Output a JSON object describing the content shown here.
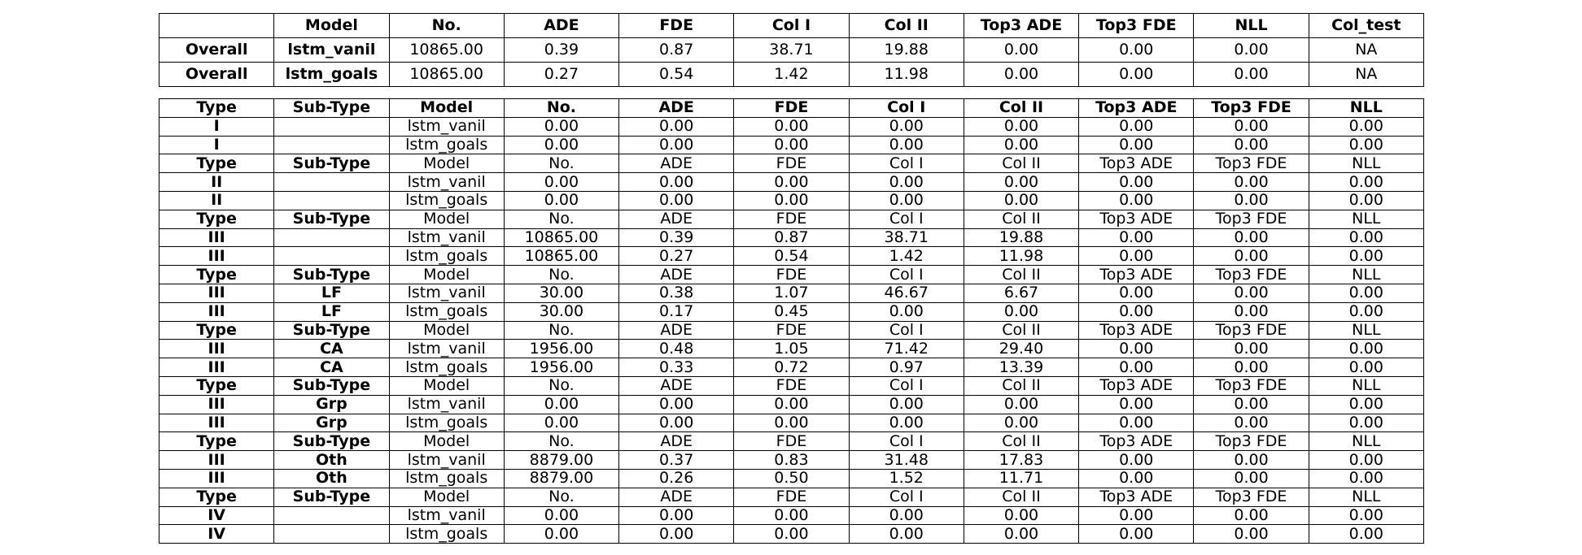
{
  "chart_data": [
    {
      "type": "table",
      "columns": [
        "",
        "Model",
        "No.",
        "ADE",
        "FDE",
        "Col I",
        "Col II",
        "Top3 ADE",
        "Top3 FDE",
        "NLL",
        "Col_test"
      ],
      "rows": [
        [
          "Overall",
          "lstm_vanil",
          "10865.00",
          "0.39",
          "0.87",
          "38.71",
          "19.88",
          "0.00",
          "0.00",
          "0.00",
          "NA"
        ],
        [
          "Overall",
          "lstm_goals",
          "10865.00",
          "0.27",
          "0.54",
          "1.42",
          "11.98",
          "0.00",
          "0.00",
          "0.00",
          "NA"
        ]
      ]
    },
    {
      "type": "table",
      "columns": [
        "Type",
        "Sub-Type",
        "Model",
        "No.",
        "ADE",
        "FDE",
        "Col I",
        "Col II",
        "Top3 ADE",
        "Top3 FDE",
        "NLL"
      ],
      "rows": [
        [
          "I",
          "",
          "lstm_vanil",
          "0.00",
          "0.00",
          "0.00",
          "0.00",
          "0.00",
          "0.00",
          "0.00",
          "0.00"
        ],
        [
          "I",
          "",
          "lstm_goals",
          "0.00",
          "0.00",
          "0.00",
          "0.00",
          "0.00",
          "0.00",
          "0.00",
          "0.00"
        ],
        [
          "Type",
          "Sub-Type",
          "Model",
          "No.",
          "ADE",
          "FDE",
          "Col I",
          "Col II",
          "Top3 ADE",
          "Top3 FDE",
          "NLL"
        ],
        [
          "II",
          "",
          "lstm_vanil",
          "0.00",
          "0.00",
          "0.00",
          "0.00",
          "0.00",
          "0.00",
          "0.00",
          "0.00"
        ],
        [
          "II",
          "",
          "lstm_goals",
          "0.00",
          "0.00",
          "0.00",
          "0.00",
          "0.00",
          "0.00",
          "0.00",
          "0.00"
        ],
        [
          "Type",
          "Sub-Type",
          "Model",
          "No.",
          "ADE",
          "FDE",
          "Col I",
          "Col II",
          "Top3 ADE",
          "Top3 FDE",
          "NLL"
        ],
        [
          "III",
          "",
          "lstm_vanil",
          "10865.00",
          "0.39",
          "0.87",
          "38.71",
          "19.88",
          "0.00",
          "0.00",
          "0.00"
        ],
        [
          "III",
          "",
          "lstm_goals",
          "10865.00",
          "0.27",
          "0.54",
          "1.42",
          "11.98",
          "0.00",
          "0.00",
          "0.00"
        ],
        [
          "Type",
          "Sub-Type",
          "Model",
          "No.",
          "ADE",
          "FDE",
          "Col I",
          "Col II",
          "Top3 ADE",
          "Top3 FDE",
          "NLL"
        ],
        [
          "III",
          "LF",
          "lstm_vanil",
          "30.00",
          "0.38",
          "1.07",
          "46.67",
          "6.67",
          "0.00",
          "0.00",
          "0.00"
        ],
        [
          "III",
          "LF",
          "lstm_goals",
          "30.00",
          "0.17",
          "0.45",
          "0.00",
          "0.00",
          "0.00",
          "0.00",
          "0.00"
        ],
        [
          "Type",
          "Sub-Type",
          "Model",
          "No.",
          "ADE",
          "FDE",
          "Col I",
          "Col II",
          "Top3 ADE",
          "Top3 FDE",
          "NLL"
        ],
        [
          "III",
          "CA",
          "lstm_vanil",
          "1956.00",
          "0.48",
          "1.05",
          "71.42",
          "29.40",
          "0.00",
          "0.00",
          "0.00"
        ],
        [
          "III",
          "CA",
          "lstm_goals",
          "1956.00",
          "0.33",
          "0.72",
          "0.97",
          "13.39",
          "0.00",
          "0.00",
          "0.00"
        ],
        [
          "Type",
          "Sub-Type",
          "Model",
          "No.",
          "ADE",
          "FDE",
          "Col I",
          "Col II",
          "Top3 ADE",
          "Top3 FDE",
          "NLL"
        ],
        [
          "III",
          "Grp",
          "lstm_vanil",
          "0.00",
          "0.00",
          "0.00",
          "0.00",
          "0.00",
          "0.00",
          "0.00",
          "0.00"
        ],
        [
          "III",
          "Grp",
          "lstm_goals",
          "0.00",
          "0.00",
          "0.00",
          "0.00",
          "0.00",
          "0.00",
          "0.00",
          "0.00"
        ],
        [
          "Type",
          "Sub-Type",
          "Model",
          "No.",
          "ADE",
          "FDE",
          "Col I",
          "Col II",
          "Top3 ADE",
          "Top3 FDE",
          "NLL"
        ],
        [
          "III",
          "Oth",
          "lstm_vanil",
          "8879.00",
          "0.37",
          "0.83",
          "31.48",
          "17.83",
          "0.00",
          "0.00",
          "0.00"
        ],
        [
          "III",
          "Oth",
          "lstm_goals",
          "8879.00",
          "0.26",
          "0.50",
          "1.52",
          "11.71",
          "0.00",
          "0.00",
          "0.00"
        ],
        [
          "Type",
          "Sub-Type",
          "Model",
          "No.",
          "ADE",
          "FDE",
          "Col I",
          "Col II",
          "Top3 ADE",
          "Top3 FDE",
          "NLL"
        ],
        [
          "IV",
          "",
          "lstm_vanil",
          "0.00",
          "0.00",
          "0.00",
          "0.00",
          "0.00",
          "0.00",
          "0.00",
          "0.00"
        ],
        [
          "IV",
          "",
          "lstm_goals",
          "0.00",
          "0.00",
          "0.00",
          "0.00",
          "0.00",
          "0.00",
          "0.00",
          "0.00"
        ]
      ]
    }
  ]
}
